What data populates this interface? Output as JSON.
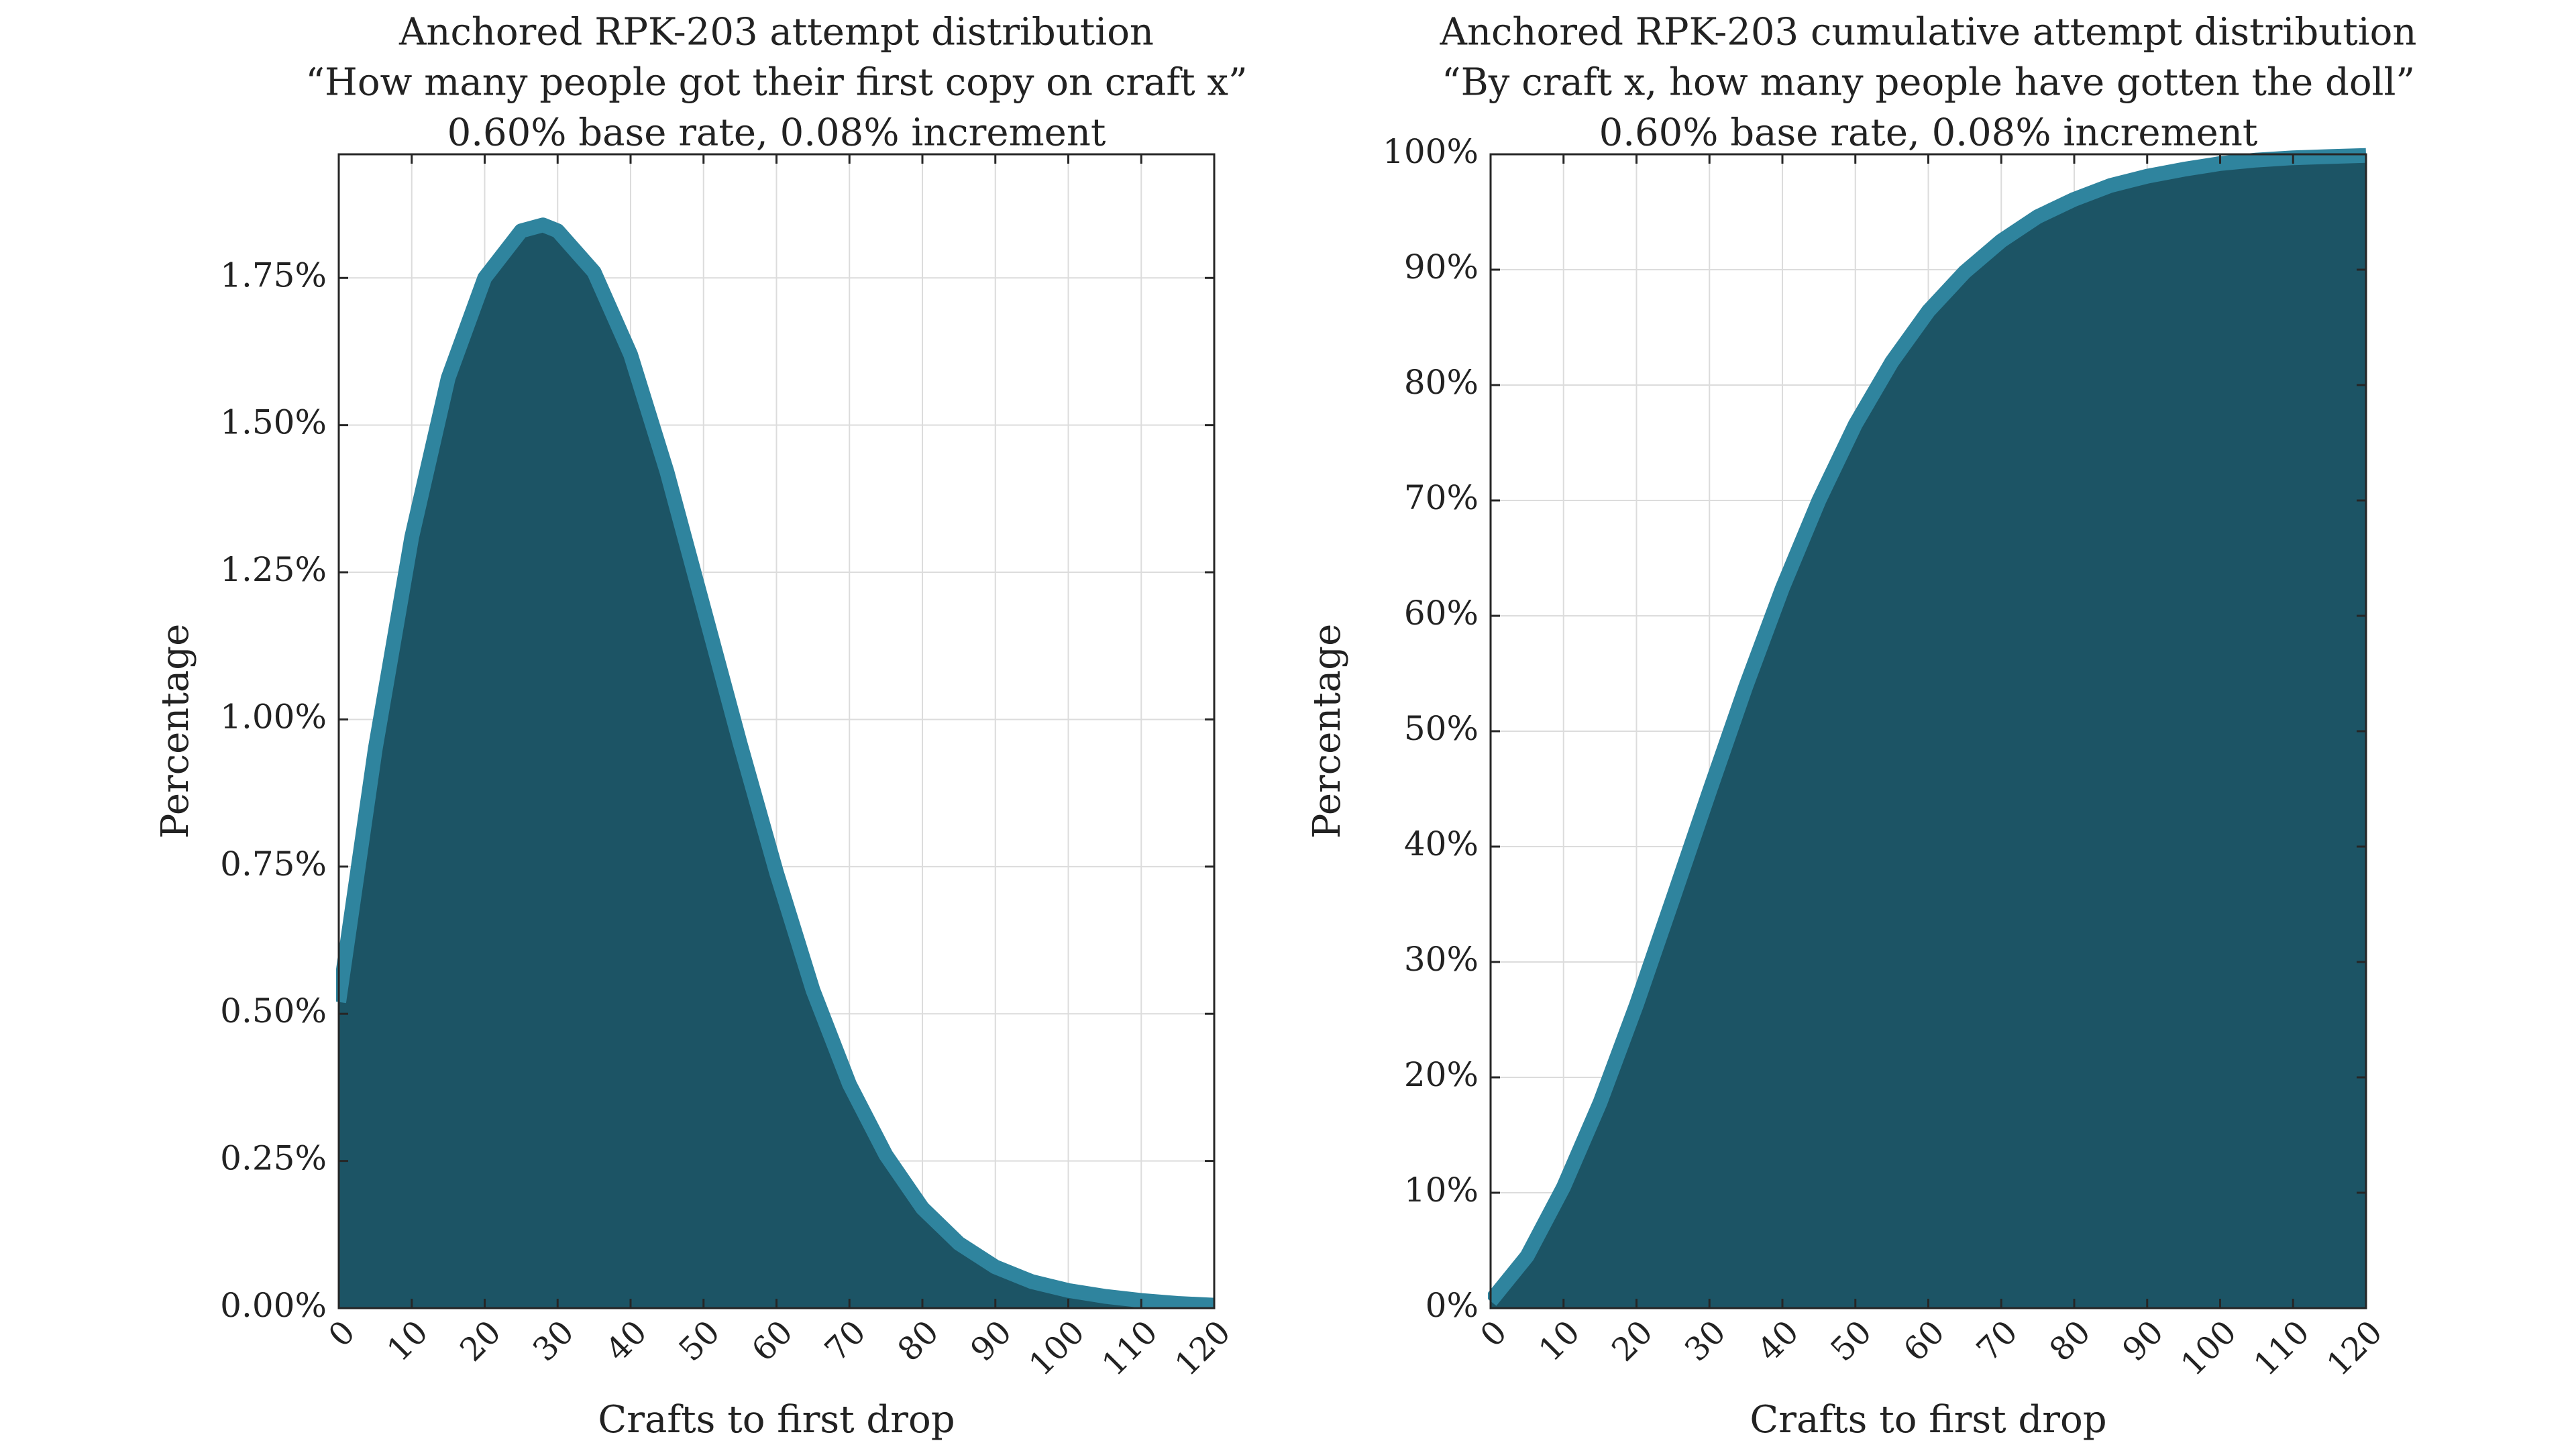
{
  "chart_data": [
    {
      "type": "area",
      "title_lines": [
        "Anchored RPK-203 attempt distribution",
        "“How many people got their first copy on craft x”",
        "0.60% base rate, 0.08% increment"
      ],
      "xlabel": "Crafts to first drop",
      "ylabel": "Percentage",
      "xlim": [
        0,
        120
      ],
      "ylim": [
        0,
        1.96
      ],
      "xticks": [
        0,
        10,
        20,
        30,
        40,
        50,
        60,
        70,
        80,
        90,
        100,
        110,
        120
      ],
      "xtick_labels": [
        "0",
        "10",
        "20",
        "30",
        "40",
        "50",
        "60",
        "70",
        "80",
        "90",
        "100",
        "110",
        "120"
      ],
      "yticks": [
        0,
        0.25,
        0.5,
        0.75,
        1.0,
        1.25,
        1.5,
        1.75
      ],
      "ytick_labels": [
        "0.00%",
        "0.25%",
        "0.50%",
        "0.75%",
        "1.00%",
        "1.25%",
        "1.50%",
        "1.75%"
      ],
      "grid": true,
      "series": [
        {
          "x": [
            0,
            5,
            10,
            15,
            20,
            25,
            28,
            30,
            35,
            40,
            45,
            50,
            55,
            60,
            65,
            70,
            75,
            80,
            85,
            90,
            95,
            100,
            105,
            110,
            115,
            120
          ],
          "values": [
            0.52,
            0.95,
            1.31,
            1.58,
            1.75,
            1.83,
            1.84,
            1.83,
            1.76,
            1.62,
            1.42,
            1.19,
            0.96,
            0.74,
            0.54,
            0.38,
            0.26,
            0.17,
            0.11,
            0.07,
            0.045,
            0.03,
            0.02,
            0.013,
            0.008,
            0.005
          ]
        }
      ],
      "colors": {
        "fill": "#1c5465",
        "line": "#2f849e"
      }
    },
    {
      "type": "area",
      "title_lines": [
        "Anchored RPK-203 cumulative attempt distribution",
        "“By craft x, how many people have gotten the doll”",
        "0.60% base rate, 0.08% increment"
      ],
      "xlabel": "Crafts to first drop",
      "ylabel": "Percentage",
      "xlim": [
        0,
        120
      ],
      "ylim": [
        0,
        100
      ],
      "xticks": [
        0,
        10,
        20,
        30,
        40,
        50,
        60,
        70,
        80,
        90,
        100,
        110,
        120
      ],
      "xtick_labels": [
        "0",
        "10",
        "20",
        "30",
        "40",
        "50",
        "60",
        "70",
        "80",
        "90",
        "100",
        "110",
        "120"
      ],
      "yticks": [
        0,
        10,
        20,
        30,
        40,
        50,
        60,
        70,
        80,
        90,
        100
      ],
      "ytick_labels": [
        "0%",
        "10%",
        "20%",
        "30%",
        "40%",
        "50%",
        "60%",
        "70%",
        "80%",
        "90%",
        "100%"
      ],
      "grid": true,
      "series": [
        {
          "x": [
            0,
            5,
            10,
            15,
            20,
            25,
            30,
            35,
            40,
            45,
            50,
            55,
            60,
            65,
            70,
            75,
            80,
            85,
            90,
            95,
            100,
            105,
            110,
            115,
            120
          ],
          "values": [
            0.6,
            4.5,
            10.5,
            17.8,
            26.3,
            35.5,
            44.8,
            53.9,
            62.4,
            70.0,
            76.6,
            82.0,
            86.4,
            89.8,
            92.5,
            94.6,
            96.1,
            97.3,
            98.1,
            98.7,
            99.2,
            99.5,
            99.7,
            99.8,
            99.9
          ]
        }
      ],
      "colors": {
        "fill": "#1c5465",
        "line": "#2f849e"
      }
    }
  ]
}
